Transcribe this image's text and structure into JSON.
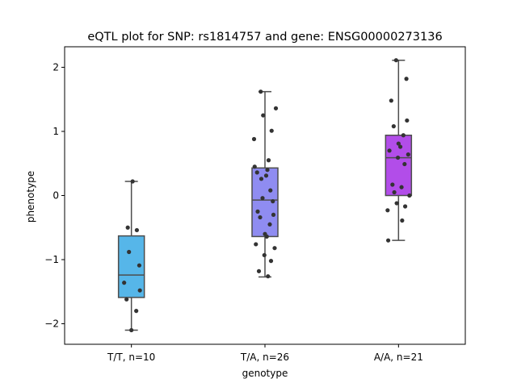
{
  "chart_data": {
    "type": "box",
    "title": "eQTL plot for SNP: rs1814757 and gene: ENSG00000273136",
    "xlabel": "genotype",
    "ylabel": "phenotype",
    "ylim": [
      -2.32,
      2.32
    ],
    "yticks": [
      {
        "value": 2,
        "label": "2"
      },
      {
        "value": 1,
        "label": "1"
      },
      {
        "value": 0,
        "label": "0"
      },
      {
        "value": -1,
        "label": "−1"
      },
      {
        "value": -2,
        "label": "−2"
      }
    ],
    "grid": false,
    "legend": "none",
    "categories": [
      "T/T, n=10",
      "T/A, n=26",
      "A/A, n=21"
    ],
    "colors": [
      "#56b6e9",
      "#8f8cf1",
      "#b24de9"
    ],
    "boxes": [
      {
        "whisker_low": -2.1,
        "q1": -1.59,
        "median": -1.24,
        "q3": -0.63,
        "whisker_high": 0.22
      },
      {
        "whisker_low": -1.27,
        "q1": -0.64,
        "median": -0.07,
        "q3": 0.43,
        "whisker_high": 1.62
      },
      {
        "whisker_low": -0.7,
        "q1": 0.0,
        "median": 0.59,
        "q3": 0.94,
        "whisker_high": 2.11
      }
    ],
    "points": [
      [
        -2.1,
        -1.8,
        -1.62,
        -1.48,
        -1.36,
        -1.09,
        -0.88,
        -0.54,
        -0.5,
        0.22
      ],
      [
        -1.26,
        -1.18,
        -1.02,
        -0.93,
        -0.82,
        -0.76,
        -0.64,
        -0.6,
        -0.45,
        -0.34,
        -0.3,
        -0.25,
        -0.09,
        -0.04,
        0.08,
        0.26,
        0.31,
        0.36,
        0.4,
        0.45,
        0.55,
        0.88,
        1.01,
        1.25,
        1.36,
        1.62
      ],
      [
        -0.7,
        -0.39,
        -0.23,
        -0.17,
        -0.12,
        0.0,
        0.05,
        0.13,
        0.17,
        0.49,
        0.59,
        0.64,
        0.7,
        0.76,
        0.81,
        0.94,
        1.08,
        1.17,
        1.48,
        1.82,
        2.11
      ]
    ]
  }
}
